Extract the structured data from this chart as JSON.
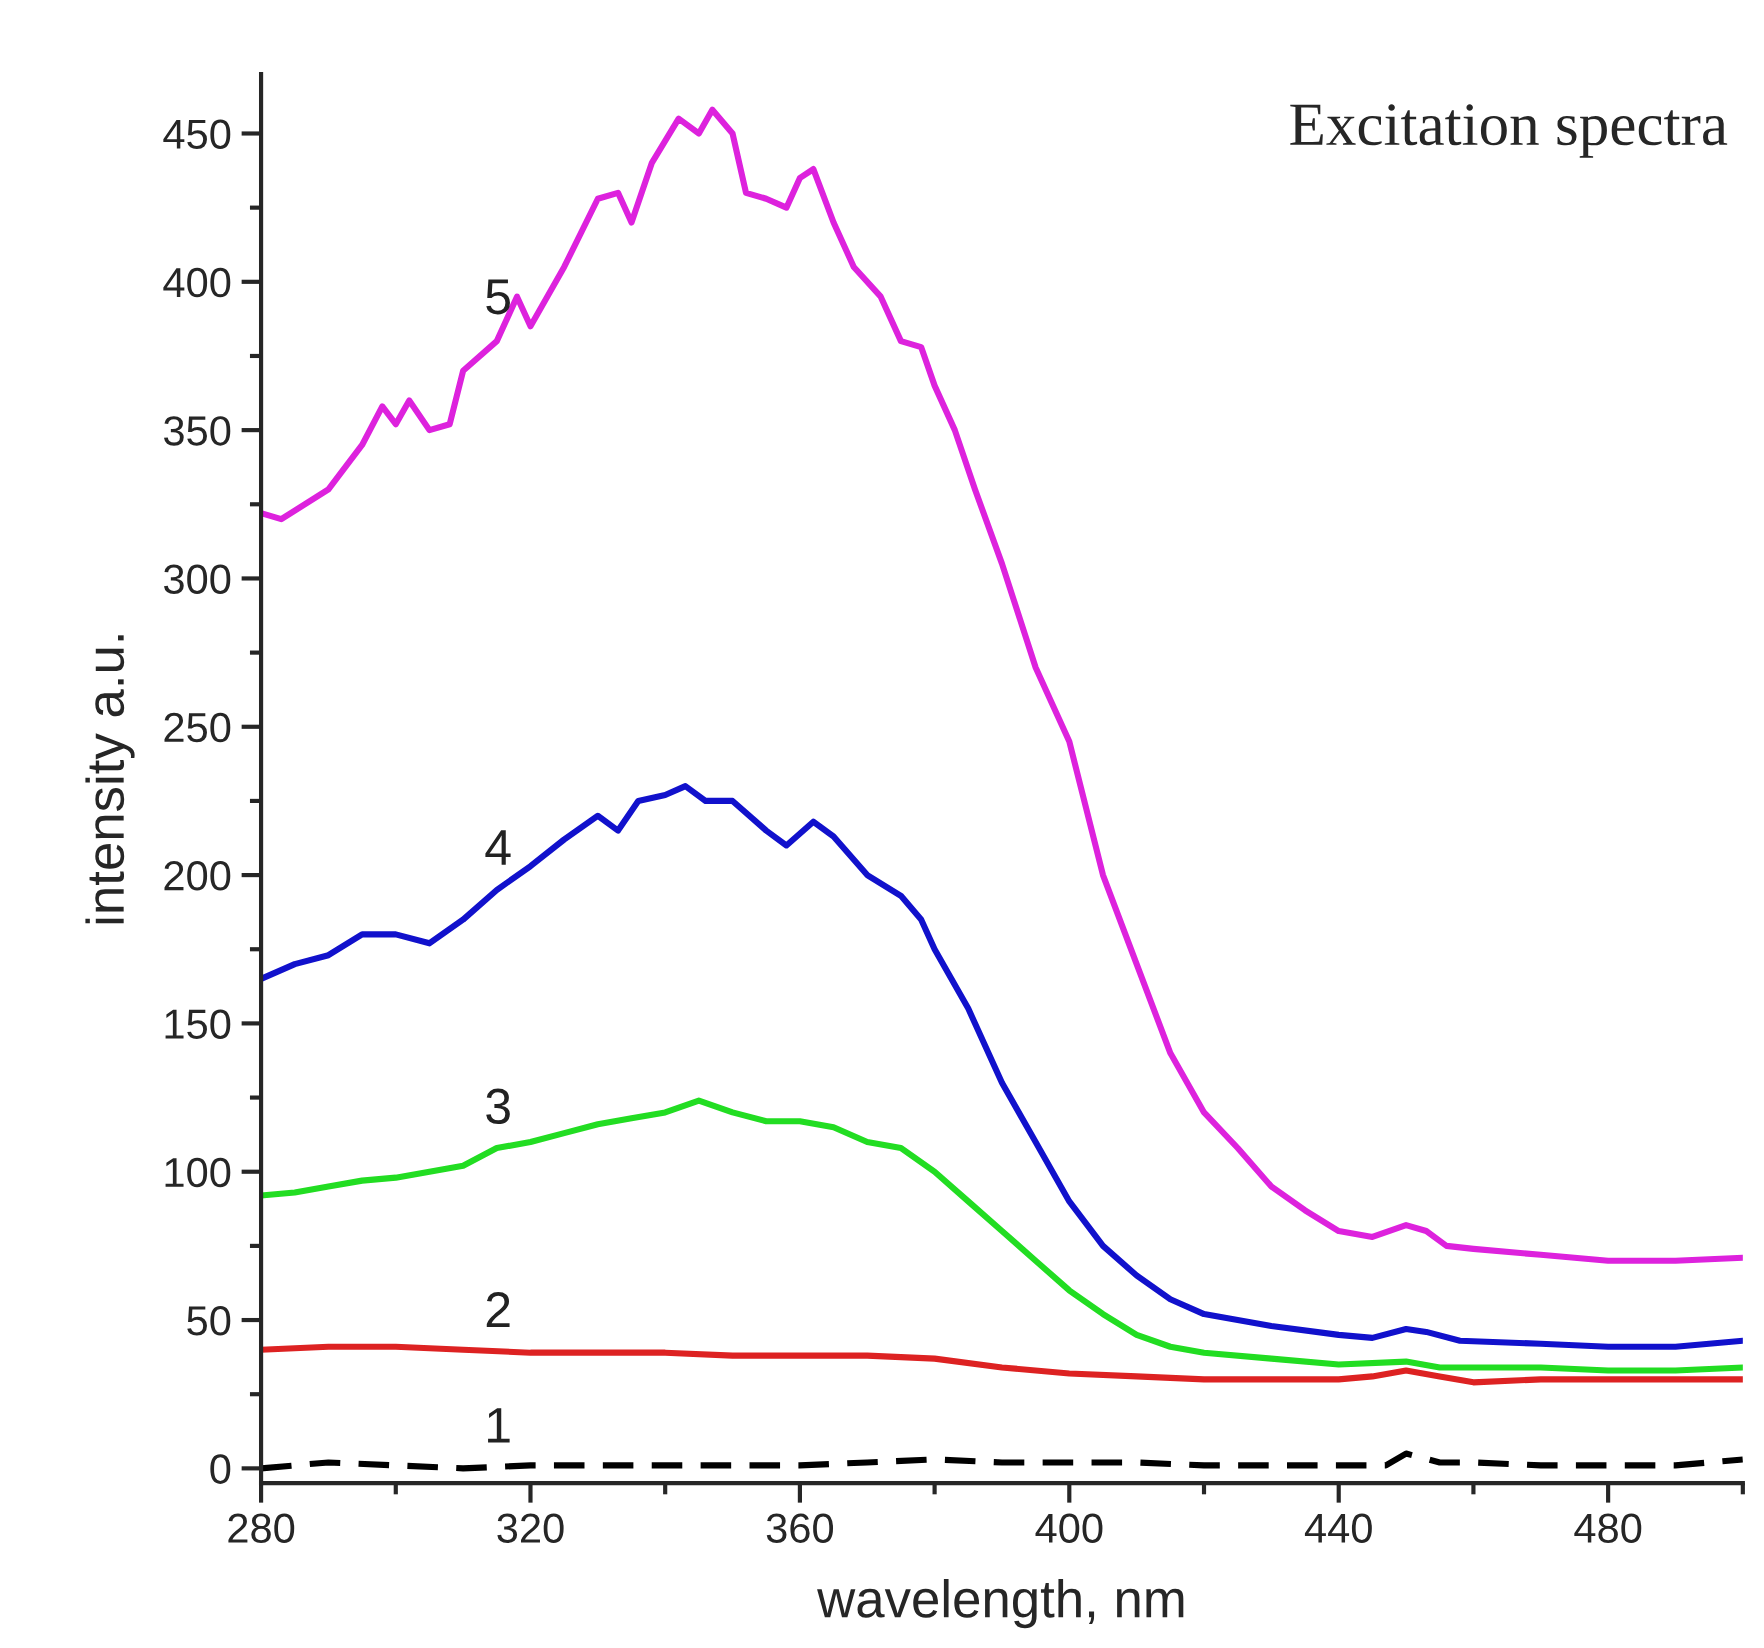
{
  "chart_data": {
    "type": "line",
    "xlabel": "wavelength, nm",
    "ylabel": "intensity a.u.",
    "xlim": [
      280,
      500
    ],
    "xticks": [
      280,
      320,
      360,
      400,
      440,
      480
    ],
    "ylim": [
      -5,
      470
    ],
    "yticks": [
      0,
      50,
      100,
      150,
      200,
      250,
      300,
      350,
      400,
      450
    ],
    "grid": false,
    "legend": false,
    "marker": "none",
    "annotations": [
      "Excitation spectra"
    ],
    "series": [
      {
        "name": "1",
        "color": "#000000",
        "line_style": "dashed",
        "x": [
          280,
          290,
          300,
          310,
          320,
          330,
          340,
          350,
          360,
          370,
          380,
          390,
          400,
          410,
          420,
          430,
          440,
          447,
          450,
          455,
          460,
          470,
          480,
          490,
          500
        ],
        "values": [
          0,
          2,
          1,
          0,
          1,
          1,
          1,
          1,
          1,
          2,
          3,
          2,
          2,
          2,
          1,
          1,
          1,
          1,
          5,
          2,
          2,
          1,
          1,
          1,
          3
        ]
      },
      {
        "name": "2",
        "color": "#dd2222",
        "line_style": "solid",
        "x": [
          280,
          290,
          300,
          310,
          320,
          330,
          340,
          350,
          360,
          370,
          380,
          390,
          400,
          410,
          420,
          430,
          440,
          445,
          450,
          455,
          460,
          470,
          480,
          490,
          500
        ],
        "values": [
          40,
          41,
          41,
          40,
          39,
          39,
          39,
          38,
          38,
          38,
          37,
          34,
          32,
          31,
          30,
          30,
          30,
          31,
          33,
          31,
          29,
          30,
          30,
          30,
          30
        ]
      },
      {
        "name": "3",
        "color": "#22dd22",
        "line_style": "solid",
        "x": [
          280,
          285,
          290,
          295,
          300,
          305,
          310,
          315,
          320,
          325,
          330,
          335,
          340,
          345,
          350,
          355,
          360,
          365,
          370,
          375,
          380,
          385,
          390,
          395,
          400,
          405,
          410,
          415,
          420,
          430,
          440,
          450,
          455,
          460,
          470,
          480,
          490,
          500
        ],
        "values": [
          92,
          93,
          95,
          97,
          98,
          100,
          102,
          108,
          110,
          113,
          116,
          118,
          120,
          124,
          120,
          117,
          117,
          115,
          110,
          108,
          100,
          90,
          80,
          70,
          60,
          52,
          45,
          41,
          39,
          37,
          35,
          36,
          34,
          34,
          34,
          33,
          33,
          34
        ]
      },
      {
        "name": "4",
        "color": "#1111cc",
        "line_style": "solid",
        "x": [
          280,
          285,
          290,
          295,
          300,
          305,
          310,
          315,
          320,
          325,
          330,
          333,
          336,
          340,
          343,
          346,
          350,
          355,
          358,
          362,
          365,
          370,
          375,
          378,
          380,
          385,
          390,
          395,
          400,
          405,
          410,
          415,
          420,
          425,
          430,
          440,
          445,
          450,
          453,
          458,
          470,
          480,
          490,
          500
        ],
        "values": [
          165,
          170,
          173,
          180,
          180,
          177,
          185,
          195,
          203,
          212,
          220,
          215,
          225,
          227,
          230,
          225,
          225,
          215,
          210,
          218,
          213,
          200,
          193,
          185,
          175,
          155,
          130,
          110,
          90,
          75,
          65,
          57,
          52,
          50,
          48,
          45,
          44,
          47,
          46,
          43,
          42,
          41,
          41,
          43
        ]
      },
      {
        "name": "5",
        "color": "#dd22dd",
        "line_style": "solid",
        "x": [
          280,
          283,
          290,
          295,
          298,
          300,
          302,
          305,
          308,
          310,
          315,
          318,
          320,
          325,
          330,
          333,
          335,
          338,
          342,
          345,
          347,
          350,
          352,
          355,
          358,
          360,
          362,
          365,
          368,
          372,
          375,
          378,
          380,
          383,
          386,
          390,
          395,
          400,
          405,
          410,
          415,
          420,
          425,
          430,
          435,
          440,
          445,
          450,
          453,
          456,
          460,
          470,
          480,
          490,
          500
        ],
        "values": [
          322,
          320,
          330,
          345,
          358,
          352,
          360,
          350,
          352,
          370,
          380,
          395,
          385,
          405,
          428,
          430,
          420,
          440,
          455,
          450,
          458,
          450,
          430,
          428,
          425,
          435,
          438,
          420,
          405,
          395,
          380,
          378,
          365,
          350,
          330,
          305,
          270,
          245,
          200,
          170,
          140,
          120,
          108,
          95,
          87,
          80,
          78,
          82,
          80,
          75,
          74,
          72,
          70,
          70,
          71
        ]
      }
    ]
  }
}
